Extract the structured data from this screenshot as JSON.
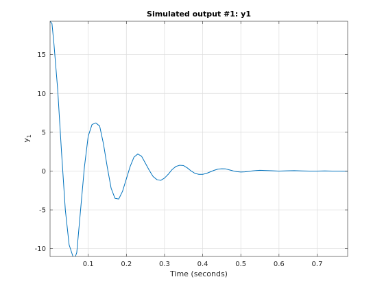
{
  "chart_data": {
    "type": "line",
    "title": "Simulated output #1: y1",
    "xlabel": "Time (seconds)",
    "ylabel_main": "y",
    "ylabel_sub": "1",
    "xlim": [
      0,
      0.78
    ],
    "ylim": [
      -11,
      19.3
    ],
    "grid": true,
    "x_ticks": [
      0.1,
      0.2,
      0.3,
      0.4,
      0.5,
      0.6,
      0.7
    ],
    "x_tick_labels": [
      "0.1",
      "0.2",
      "0.3",
      "0.4",
      "0.5",
      "0.6",
      "0.7"
    ],
    "y_ticks": [
      -10,
      -5,
      0,
      5,
      10,
      15
    ],
    "y_tick_labels": [
      "-10",
      "-5",
      "0",
      "5",
      "10",
      "15"
    ],
    "line_color": "#0072bd",
    "series": [
      {
        "x": [
          0,
          0.005,
          0.01,
          0.02,
          0.03,
          0.04,
          0.05,
          0.06,
          0.065,
          0.07,
          0.08,
          0.09,
          0.1,
          0.11,
          0.12,
          0.125,
          0.13,
          0.14,
          0.15,
          0.16,
          0.17,
          0.18,
          0.19,
          0.2,
          0.21,
          0.22,
          0.23,
          0.24,
          0.25,
          0.26,
          0.27,
          0.28,
          0.29,
          0.3,
          0.31,
          0.32,
          0.33,
          0.34,
          0.35,
          0.36,
          0.37,
          0.38,
          0.39,
          0.4,
          0.41,
          0.42,
          0.43,
          0.44,
          0.45,
          0.46,
          0.47,
          0.48,
          0.49,
          0.5,
          0.51,
          0.52,
          0.53,
          0.54,
          0.55,
          0.56,
          0.58,
          0.6,
          0.62,
          0.64,
          0.66,
          0.68,
          0.7,
          0.72,
          0.74,
          0.76,
          0.78
        ],
        "y": [
          19.3,
          19.0,
          16.5,
          10.5,
          2.5,
          -5,
          -9.5,
          -11,
          -11.2,
          -10.5,
          -5,
          0.5,
          4.5,
          6.0,
          6.2,
          6.0,
          5.8,
          3.5,
          0.5,
          -2.2,
          -3.5,
          -3.6,
          -2.6,
          -1.0,
          0.6,
          1.8,
          2.2,
          1.9,
          1.0,
          0.1,
          -0.7,
          -1.1,
          -1.2,
          -0.9,
          -0.4,
          0.2,
          0.6,
          0.75,
          0.7,
          0.4,
          0.0,
          -0.3,
          -0.42,
          -0.42,
          -0.3,
          -0.1,
          0.1,
          0.25,
          0.3,
          0.28,
          0.15,
          0.02,
          -0.08,
          -0.12,
          -0.1,
          -0.05,
          0.02,
          0.07,
          0.1,
          0.08,
          0.04,
          0.0,
          0.03,
          0.05,
          0.02,
          0.0,
          0.0,
          0.02,
          0.0,
          0.0,
          -0.01
        ]
      }
    ]
  }
}
